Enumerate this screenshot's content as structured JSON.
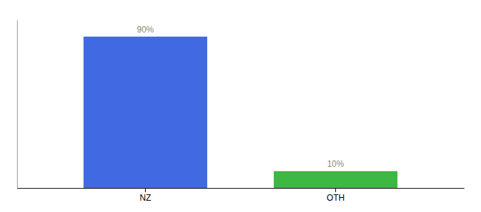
{
  "chart_data": {
    "type": "bar",
    "categories": [
      "NZ",
      "OTH"
    ],
    "values": [
      90,
      10
    ],
    "colors": [
      "#4169e1",
      "#3cb843"
    ],
    "value_labels": [
      "90%",
      "10%"
    ],
    "data_labels": true,
    "ylim": [
      0,
      100
    ],
    "tick_labels": "x"
  }
}
